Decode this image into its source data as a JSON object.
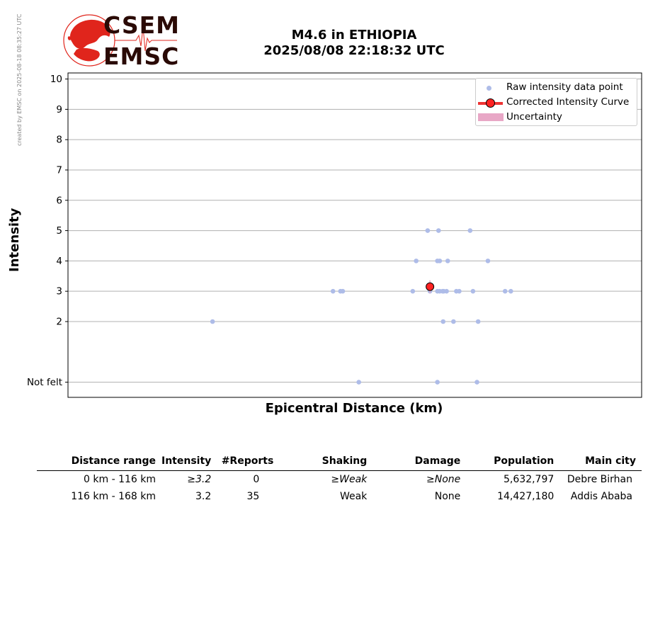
{
  "side_note": "created by EMSC on 2025-08-18 08:35:27 UTC",
  "logo": {
    "top_text": "CSEM",
    "bottom_text": "EMSC"
  },
  "title": {
    "line1": "M4.6 in ETHIOPIA",
    "line2": "2025/08/08 22:18:32 UTC"
  },
  "chart_data": {
    "type": "scatter",
    "xlabel": "Epicentral Distance (km)",
    "ylabel": "Intensity",
    "xlim": [
      0,
      100
    ],
    "ylim": [
      -0.5,
      10.2
    ],
    "x_tick_labels_visible": false,
    "y_ticks": [
      {
        "value": 0,
        "label": "Not felt"
      },
      {
        "value": 2,
        "label": "2"
      },
      {
        "value": 3,
        "label": "3"
      },
      {
        "value": 4,
        "label": "4"
      },
      {
        "value": 5,
        "label": "5"
      },
      {
        "value": 6,
        "label": "6"
      },
      {
        "value": 7,
        "label": "7"
      },
      {
        "value": 8,
        "label": "8"
      },
      {
        "value": 9,
        "label": "9"
      },
      {
        "value": 10,
        "label": "10"
      }
    ],
    "grid": "horizontal",
    "legend_position": "top-right",
    "legend": [
      "Raw intensity data point",
      "Corrected Intensity Curve",
      "Uncertainty"
    ],
    "series": [
      {
        "name": "Raw intensity data point",
        "color": "#aebce8",
        "points": [
          {
            "x": 62.7,
            "y": 5
          },
          {
            "x": 64.6,
            "y": 5
          },
          {
            "x": 70.1,
            "y": 5
          },
          {
            "x": 60.7,
            "y": 4
          },
          {
            "x": 64.4,
            "y": 4
          },
          {
            "x": 64.8,
            "y": 4
          },
          {
            "x": 66.2,
            "y": 4
          },
          {
            "x": 73.2,
            "y": 4
          },
          {
            "x": 46.2,
            "y": 3
          },
          {
            "x": 47.5,
            "y": 3
          },
          {
            "x": 47.9,
            "y": 3
          },
          {
            "x": 60.1,
            "y": 3
          },
          {
            "x": 63.1,
            "y": 3
          },
          {
            "x": 64.4,
            "y": 3
          },
          {
            "x": 64.8,
            "y": 3
          },
          {
            "x": 65.3,
            "y": 3
          },
          {
            "x": 65.5,
            "y": 3
          },
          {
            "x": 66.0,
            "y": 3
          },
          {
            "x": 67.7,
            "y": 3
          },
          {
            "x": 68.2,
            "y": 3
          },
          {
            "x": 70.6,
            "y": 3
          },
          {
            "x": 76.2,
            "y": 3
          },
          {
            "x": 77.2,
            "y": 3
          },
          {
            "x": 25.2,
            "y": 2
          },
          {
            "x": 65.4,
            "y": 2
          },
          {
            "x": 67.2,
            "y": 2
          },
          {
            "x": 71.5,
            "y": 2
          },
          {
            "x": 50.7,
            "y": 0
          },
          {
            "x": 64.4,
            "y": 0
          },
          {
            "x": 71.3,
            "y": 0
          }
        ]
      },
      {
        "name": "Corrected Intensity Curve",
        "color": "#ff2222",
        "points": [
          {
            "x": 63.1,
            "y": 3.15
          }
        ]
      }
    ]
  },
  "table": {
    "headers": [
      "Distance range",
      "Intensity",
      "#Reports",
      "Shaking",
      "Damage",
      "Population",
      "Main city"
    ],
    "rows": [
      [
        "0 km -  116 km",
        "≥3.2",
        "0",
        "≥Weak",
        "≥None",
        "5,632,797",
        "Debre Birhan"
      ],
      [
        "116 km -  168 km",
        "3.2",
        "35",
        "Weak",
        "None",
        "14,427,180",
        "Addis Ababa"
      ]
    ]
  },
  "colors": {
    "raw_point": "#aebce8",
    "curve": "#ee3333",
    "marker": "#ff2222",
    "uncertainty": "#e8a7c6",
    "logo_red": "#e0251c",
    "logo_text": "#2a0a05"
  }
}
